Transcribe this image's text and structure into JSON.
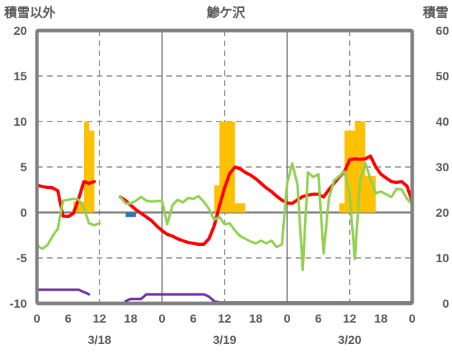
{
  "header": {
    "left_axis_title": "積雪以外",
    "station_title": "鯵ケ沢",
    "right_axis_title": "積雪"
  },
  "colors": {
    "background": "#FFFFFF",
    "frame": "#7F7F7F",
    "grid": "#7F7F7F",
    "text": "#595959",
    "orange_bar": "#FFC000",
    "blue_bar": "#2E75B6",
    "red_line": "#FF0000",
    "green_line": "#92D050",
    "purple_line": "#7030A0"
  },
  "chart_data": {
    "type": "bar",
    "subtype": "combo-bar-line",
    "title": "鯵ケ沢",
    "left_axis": {
      "label": "積雪以外",
      "min": -10,
      "max": 20,
      "ticks": [
        20,
        15,
        10,
        5,
        0,
        -5,
        -10
      ],
      "dashed_gridlines": [
        15,
        10,
        5,
        -5
      ]
    },
    "right_axis": {
      "label": "積雪",
      "min": 0,
      "max": 60,
      "ticks": [
        60,
        50,
        40,
        30,
        20,
        10,
        0
      ]
    },
    "x_axis": {
      "total_hours": 72,
      "tick_hours": [
        0,
        6,
        12,
        18,
        24,
        30,
        36,
        42,
        48,
        54,
        60,
        66,
        72
      ],
      "tick_labels": [
        "0",
        "6",
        "12",
        "18",
        "0",
        "6",
        "12",
        "18",
        "0",
        "6",
        "12",
        "18",
        "0"
      ],
      "day_labels": [
        {
          "label": "3/18",
          "center_hour": 12
        },
        {
          "label": "3/19",
          "center_hour": 36
        },
        {
          "label": "3/20",
          "center_hour": 60
        }
      ],
      "solid_gridline_hours": [
        24,
        48
      ],
      "dashed_gridline_hours": [
        12,
        36,
        60
      ]
    },
    "series": [
      {
        "id": "orange_bars",
        "type": "bar",
        "axis": "left",
        "color": "#FFC000",
        "points": [
          {
            "hour": 7,
            "value": 1.2
          },
          {
            "hour": 8,
            "value": 1.2
          },
          {
            "hour": 9,
            "value": 10
          },
          {
            "hour": 10,
            "value": 9
          },
          {
            "hour": 34,
            "value": 3
          },
          {
            "hour": 35,
            "value": 10
          },
          {
            "hour": 36,
            "value": 10
          },
          {
            "hour": 37,
            "value": 10
          },
          {
            "hour": 38,
            "value": 1
          },
          {
            "hour": 39,
            "value": 1
          },
          {
            "hour": 58,
            "value": 1
          },
          {
            "hour": 59,
            "value": 9
          },
          {
            "hour": 60,
            "value": 9
          },
          {
            "hour": 61,
            "value": 10
          },
          {
            "hour": 62,
            "value": 10
          },
          {
            "hour": 63,
            "value": 4
          },
          {
            "hour": 64,
            "value": 4
          }
        ]
      },
      {
        "id": "blue_bars",
        "type": "bar",
        "axis": "left",
        "color": "#2E75B6",
        "points": [
          {
            "hour": 17,
            "value": -0.5
          },
          {
            "hour": 18,
            "value": -0.5
          }
        ]
      },
      {
        "id": "red_line",
        "type": "line",
        "axis": "left",
        "color": "#FF0000",
        "width": 4.5,
        "values": [
          3.0,
          2.85,
          2.75,
          2.7,
          2.4,
          -0.4,
          -0.45,
          -0.1,
          1.5,
          3.4,
          3.2,
          3.4,
          null,
          null,
          null,
          null,
          1.7,
          1.3,
          0.8,
          0.3,
          -0.1,
          -0.5,
          -0.9,
          -1.5,
          -2.0,
          -2.4,
          -2.6,
          -2.9,
          -3.1,
          -3.3,
          -3.4,
          -3.5,
          -3.5,
          -2.9,
          -1.5,
          0.7,
          2.7,
          4.3,
          5.0,
          4.8,
          4.4,
          4.1,
          3.7,
          3.2,
          2.7,
          2.3,
          1.8,
          1.35,
          1.05,
          1.0,
          1.4,
          1.75,
          1.9,
          2.0,
          2.0,
          1.7,
          2.5,
          3.2,
          3.9,
          4.5,
          5.8,
          5.9,
          5.85,
          5.9,
          6.2,
          5.0,
          4.2,
          3.8,
          3.4,
          3.3,
          3.4,
          2.9,
          1.2
        ]
      },
      {
        "id": "green_line",
        "type": "line",
        "axis": "left",
        "color": "#92D050",
        "width": 3.5,
        "values": [
          -3.6,
          -4.0,
          -3.6,
          -2.6,
          -1.8,
          1.3,
          1.4,
          1.5,
          1.4,
          0.5,
          -1.2,
          -1.4,
          -1.2,
          null,
          null,
          null,
          1.7,
          1.0,
          1.0,
          1.3,
          1.7,
          1.3,
          1.2,
          1.25,
          1.3,
          -1.3,
          0.8,
          1.4,
          1.1,
          1.6,
          1.5,
          1.8,
          1.2,
          0.4,
          -0.8,
          -0.5,
          -1.3,
          -1.2,
          -2.0,
          -2.6,
          -2.9,
          -3.2,
          -3.4,
          -3.1,
          -3.4,
          -3.1,
          -3.8,
          -3.5,
          3.2,
          5.4,
          3.0,
          -6.3,
          4.4,
          3.9,
          4.2,
          -4.5,
          1.5,
          3.5,
          4.0,
          4.5,
          2.0,
          -5.1,
          3.5,
          5.4,
          3.7,
          2.1,
          2.3,
          2.0,
          1.7,
          2.6,
          2.5,
          1.5,
          0.9
        ]
      },
      {
        "id": "purple_line",
        "type": "line",
        "axis": "right",
        "color": "#7030A0",
        "width": 3.5,
        "values": [
          3,
          3,
          3,
          3,
          3,
          3,
          3,
          3,
          3,
          2.5,
          2,
          null,
          null,
          null,
          null,
          null,
          null,
          0.5,
          1,
          1,
          1,
          2,
          2,
          2,
          2,
          2,
          2,
          2,
          2,
          2,
          2,
          2,
          2,
          1.5,
          0.5,
          0.2,
          0.2,
          0.2,
          0.2,
          0.2,
          0.2,
          0.2,
          0.2,
          0.2,
          0.2,
          0.2,
          0.2,
          0.2,
          0.2,
          0.2,
          0.2,
          0.2,
          0.2,
          0.2,
          0.2,
          0.2,
          0.2,
          0.2,
          0.2,
          0.2,
          0.2,
          0.2,
          0.2,
          0.2,
          0.2,
          0.2,
          0.2,
          0.2,
          0.2,
          0.2,
          0.2,
          0.2,
          0.2
        ]
      }
    ]
  }
}
